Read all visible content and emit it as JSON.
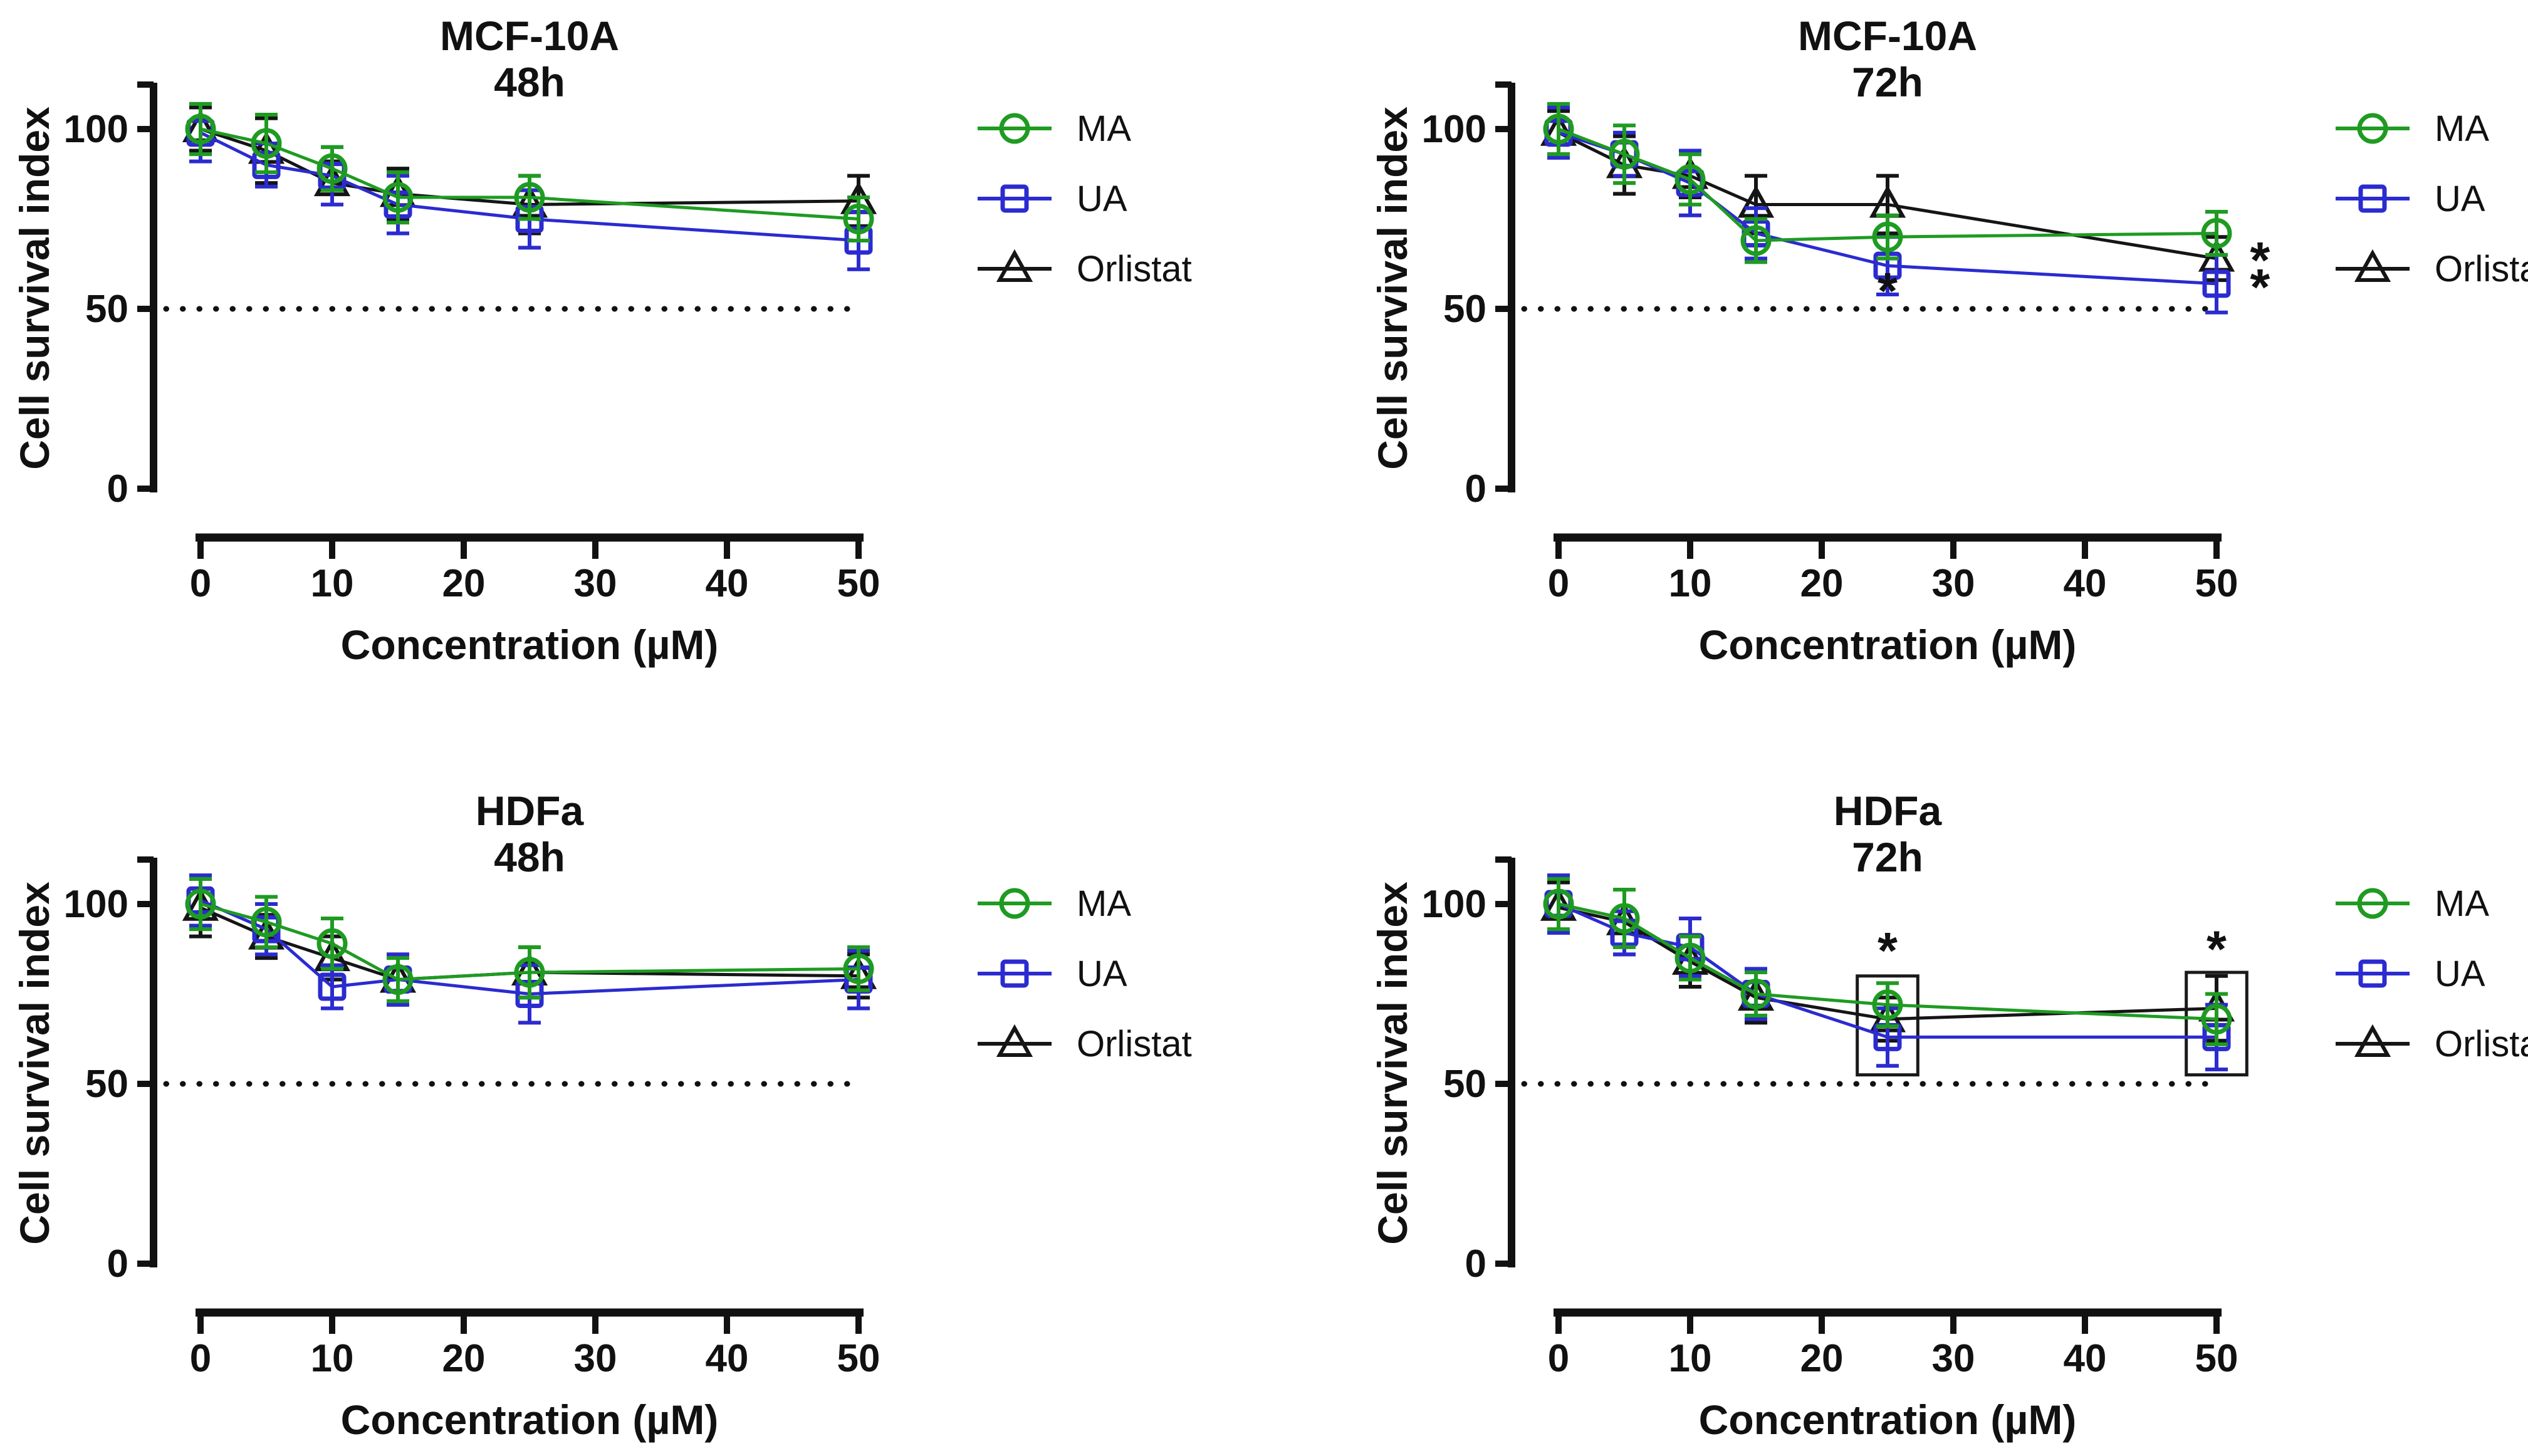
{
  "figure": {
    "background": "#ffffff",
    "y_axis_label": "Cell survival index",
    "x_axis_label": "Concentration (µM)",
    "y_ticks": [
      0,
      50,
      100
    ],
    "x_ticks": [
      0,
      10,
      20,
      30,
      40,
      50
    ],
    "reference_line_y": 50,
    "colors": {
      "MA": "#1f9b22",
      "UA": "#2b2bd0",
      "Orlistat": "#151515",
      "axis": "#111111"
    },
    "legend": [
      {
        "label": "MA",
        "marker": "circle-icon",
        "color": "#1f9b22"
      },
      {
        "label": "UA",
        "marker": "square-icon",
        "color": "#2b2bd0"
      },
      {
        "label": "Orlistat",
        "marker": "triangle-icon",
        "color": "#151515"
      }
    ]
  },
  "chart_data": [
    {
      "type": "line",
      "title": "MCF-10A",
      "subtitle": "48h",
      "xlabel": "Concentration (µM)",
      "ylabel": "Cell survival index",
      "x": [
        0,
        5,
        10,
        15,
        25,
        50
      ],
      "xlim": [
        0,
        50
      ],
      "ylim": [
        0,
        115
      ],
      "reference_line_y": 50,
      "legend_position": "right",
      "grid": false,
      "series": [
        {
          "name": "MA",
          "marker": "circle",
          "color": "#1f9b22",
          "values": [
            100,
            96,
            89,
            81,
            81,
            75
          ],
          "errors": [
            7,
            8,
            6,
            7,
            6,
            6
          ]
        },
        {
          "name": "UA",
          "marker": "square",
          "color": "#2b2bd0",
          "values": [
            99,
            90,
            87,
            79,
            75,
            69
          ],
          "errors": [
            8,
            6,
            8,
            8,
            8,
            8
          ]
        },
        {
          "name": "Orlistat",
          "marker": "triangle",
          "color": "#151515",
          "values": [
            100,
            94,
            85,
            82,
            79,
            80
          ],
          "errors": [
            6,
            9,
            6,
            7,
            8,
            7
          ]
        }
      ],
      "annotations": {
        "asterisks": [],
        "boxes": []
      }
    },
    {
      "type": "line",
      "title": "MCF-10A",
      "subtitle": "72h",
      "xlabel": "Concentration (µM)",
      "ylabel": "Cell survival index",
      "x": [
        0,
        5,
        10,
        15,
        25,
        50
      ],
      "xlim": [
        0,
        50
      ],
      "ylim": [
        0,
        115
      ],
      "reference_line_y": 50,
      "legend_position": "right",
      "grid": false,
      "series": [
        {
          "name": "MA",
          "marker": "circle",
          "color": "#1f9b22",
          "values": [
            100,
            93,
            86,
            69,
            70,
            71
          ],
          "errors": [
            7,
            8,
            7,
            6,
            6,
            6
          ]
        },
        {
          "name": "UA",
          "marker": "square",
          "color": "#2b2bd0",
          "values": [
            99,
            93,
            85,
            71,
            62,
            57
          ],
          "errors": [
            7,
            6,
            9,
            7,
            8,
            8
          ]
        },
        {
          "name": "Orlistat",
          "marker": "triangle",
          "color": "#151515",
          "values": [
            99,
            90,
            87,
            79,
            79,
            64
          ],
          "errors": [
            6,
            8,
            6,
            8,
            8,
            6
          ]
        }
      ],
      "annotations": {
        "asterisks": [
          {
            "x": 25,
            "y": 55,
            "symbol": "*"
          },
          {
            "x": 53.3,
            "y": 63.5,
            "symbol": "*"
          },
          {
            "x": 53.3,
            "y": 56,
            "symbol": "*"
          }
        ],
        "boxes": []
      }
    },
    {
      "type": "line",
      "title": "HDFa",
      "subtitle": "48h",
      "xlabel": "Concentration (µM)",
      "ylabel": "Cell survival index",
      "x": [
        0,
        5,
        10,
        15,
        25,
        50
      ],
      "xlim": [
        0,
        50
      ],
      "ylim": [
        0,
        115
      ],
      "reference_line_y": 50,
      "legend_position": "right",
      "grid": false,
      "series": [
        {
          "name": "MA",
          "marker": "circle",
          "color": "#1f9b22",
          "values": [
            100,
            95,
            89,
            79,
            81,
            82
          ],
          "errors": [
            7,
            7,
            7,
            6,
            7,
            6
          ]
        },
        {
          "name": "UA",
          "marker": "square",
          "color": "#2b2bd0",
          "values": [
            101,
            93,
            77,
            79,
            75,
            79
          ],
          "errors": [
            7,
            7,
            6,
            7,
            8,
            8
          ]
        },
        {
          "name": "Orlistat",
          "marker": "triangle",
          "color": "#151515",
          "values": [
            99,
            91,
            85,
            79,
            81,
            80
          ],
          "errors": [
            8,
            6,
            6,
            7,
            7,
            6
          ]
        }
      ],
      "annotations": {
        "asterisks": [],
        "boxes": []
      }
    },
    {
      "type": "line",
      "title": "HDFa",
      "subtitle": "72h",
      "xlabel": "Concentration (µM)",
      "ylabel": "Cell survival index",
      "x": [
        0,
        5,
        10,
        15,
        25,
        50
      ],
      "xlim": [
        0,
        50
      ],
      "ylim": [
        0,
        115
      ],
      "reference_line_y": 50,
      "legend_position": "right",
      "grid": false,
      "series": [
        {
          "name": "MA",
          "marker": "circle",
          "color": "#1f9b22",
          "values": [
            100,
            96,
            85,
            75,
            72,
            68
          ],
          "errors": [
            7,
            8,
            6,
            6,
            6,
            7
          ]
        },
        {
          "name": "UA",
          "marker": "square",
          "color": "#2b2bd0",
          "values": [
            100,
            92,
            88,
            75,
            63,
            63
          ],
          "errors": [
            8,
            6,
            8,
            7,
            8,
            9
          ]
        },
        {
          "name": "Orlistat",
          "marker": "triangle",
          "color": "#151515",
          "values": [
            99,
            95,
            84,
            74,
            68,
            71
          ],
          "errors": [
            7,
            9,
            7,
            7,
            6,
            9
          ]
        }
      ],
      "annotations": {
        "asterisks": [
          {
            "x": 25,
            "y": 87,
            "symbol": "*"
          },
          {
            "x": 50,
            "y": 87.5,
            "symbol": "*"
          }
        ],
        "boxes": [
          {
            "x1": 22.7,
            "x2": 27.3,
            "y1": 52.5,
            "y2": 80
          },
          {
            "x1": 47.7,
            "x2": 52.3,
            "y1": 52.5,
            "y2": 81
          }
        ]
      }
    }
  ]
}
